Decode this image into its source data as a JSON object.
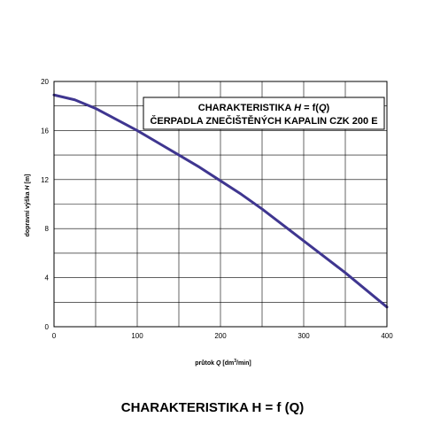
{
  "caption": "CHARAKTERISTIKA H = f (Q)",
  "chart_data": {
    "type": "line",
    "title_box": {
      "line1_prefix": "CHARAKTERISTIKA ",
      "line1_var": "H",
      "line1_mid": " = f(",
      "line1_var2": "Q",
      "line1_suffix": ")",
      "line2": "ČERPADLA ZNEČIŠTĚNÝCH KAPALIN CZK 200 E"
    },
    "xlabel": {
      "prefix": "průtok ",
      "var": "Q",
      "units_open": "  [dm",
      "sup": "3",
      "units_close": "/min]"
    },
    "ylabel": {
      "prefix": "dopravní výška ",
      "var": "H",
      "units": "  [m]"
    },
    "xlim": [
      0,
      400
    ],
    "ylim": [
      0,
      20
    ],
    "x_ticks": [
      "0",
      "100",
      "200",
      "300",
      "400"
    ],
    "y_ticks": [
      "0",
      "4",
      "8",
      "12",
      "16",
      "20"
    ],
    "grid": true,
    "line_color": "#3f3690",
    "series": [
      {
        "x": [
          0,
          25,
          50,
          75,
          100,
          125,
          150,
          175,
          200,
          225,
          250,
          275,
          300,
          325,
          350,
          375,
          400
        ],
        "values": [
          18.9,
          18.5,
          17.8,
          16.9,
          16.0,
          15.0,
          14.0,
          13.0,
          11.9,
          10.8,
          9.6,
          8.3,
          7.0,
          5.7,
          4.4,
          3.0,
          1.6
        ]
      }
    ]
  }
}
